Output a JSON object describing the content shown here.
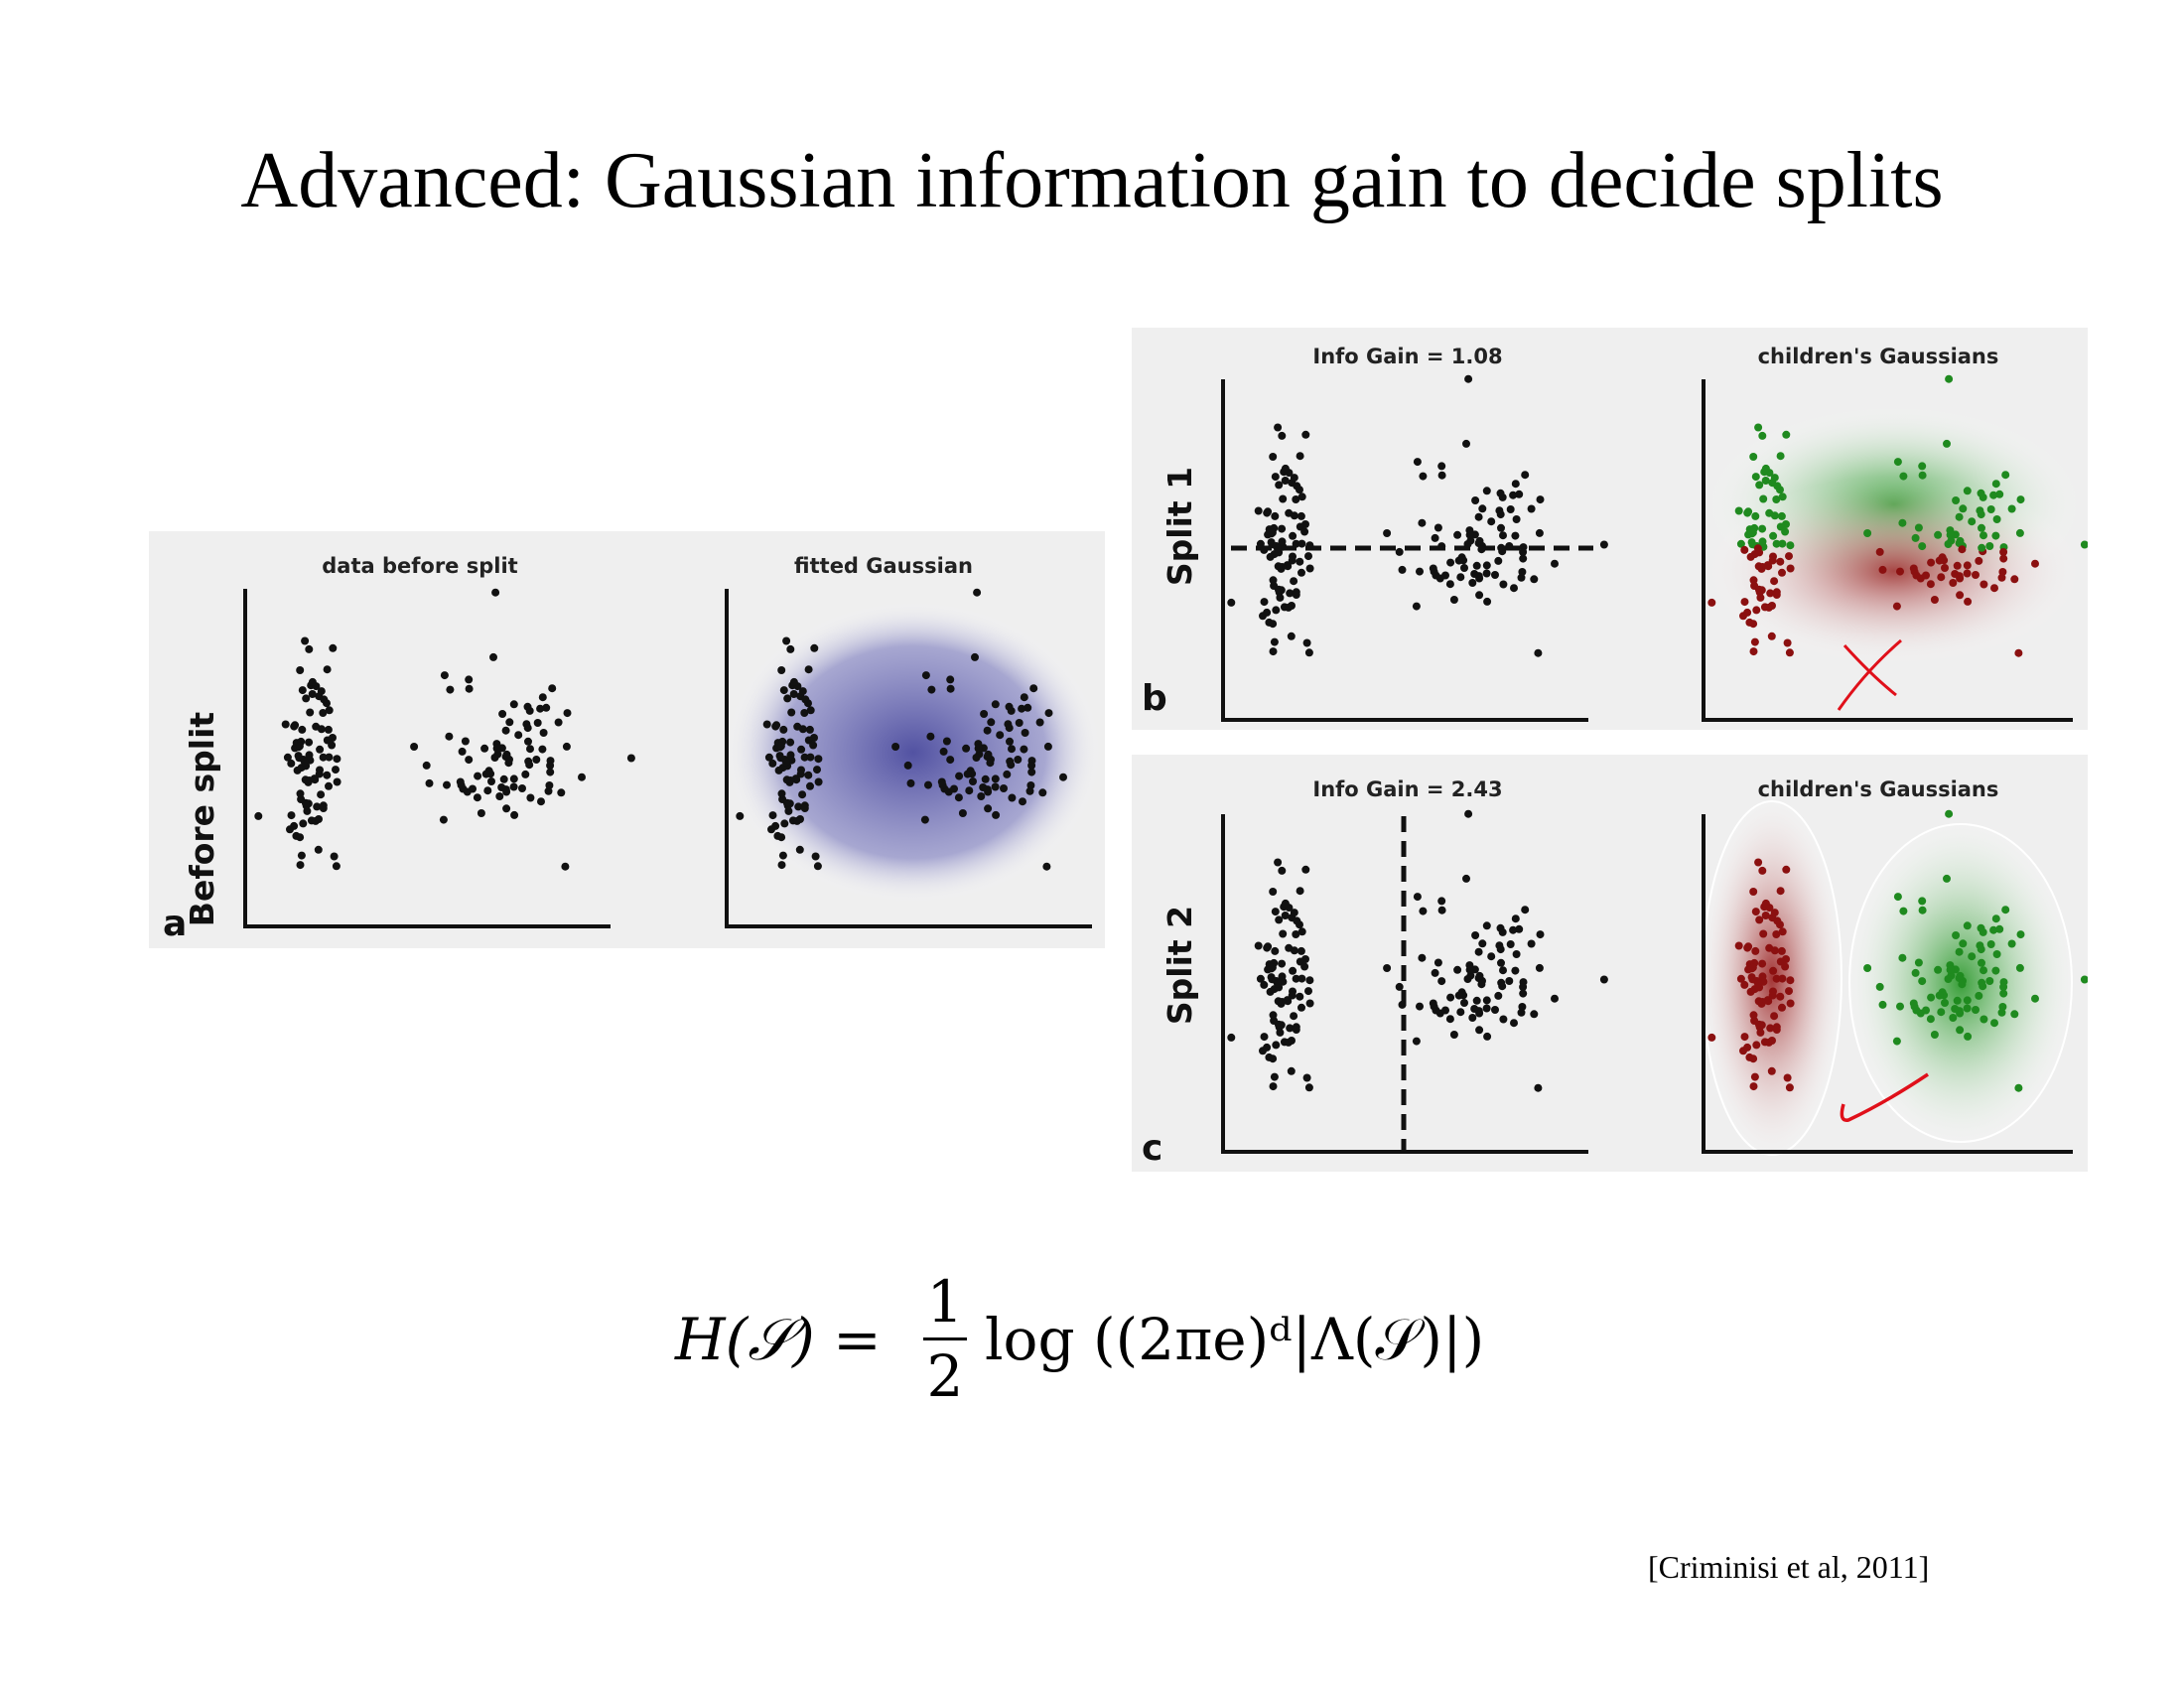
{
  "slide": {
    "title": "Advanced: Gaussian information gain to decide splits",
    "citation": "[Criminisi et al, 2011]"
  },
  "figure_a": {
    "row_label": "Before split",
    "letter": "a",
    "left_title": "data before split",
    "right_title": "fitted Gaussian",
    "gaussian_color": "#4a4a9e"
  },
  "figure_b": {
    "row_label": "Split 1",
    "letter": "b",
    "left_title": "Info Gain = 1.08",
    "right_title": "children's Gaussians",
    "annotation": "cross-mark"
  },
  "figure_c": {
    "row_label": "Split 2",
    "letter": "c",
    "left_title": "Info Gain = 2.43",
    "right_title": "children's Gaussians",
    "annotation": "check-mark"
  },
  "colors": {
    "points": "#111111",
    "red_points": "#8b1010",
    "green_points": "#1f8a1f",
    "handwriting": "#e0101a"
  },
  "formula": {
    "lhs": "H(𝒮) =",
    "numerator": "1",
    "denominator": "2",
    "rhs": "log ((2πe)ᵈ|Λ(𝒮)|)"
  }
}
